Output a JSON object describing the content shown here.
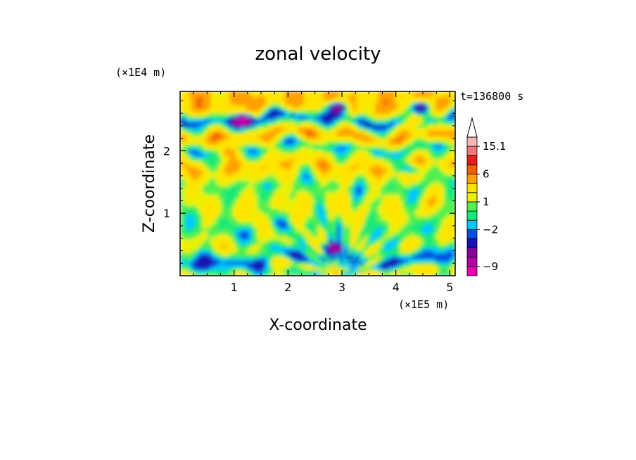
{
  "chart_data": {
    "type": "heatmap",
    "title": "zonal velocity",
    "xlabel": "X-coordinate",
    "ylabel": "Z-coordinate",
    "x_unit": "(×1E5 m)",
    "y_unit": "(×1E4 m)",
    "time_label": "t=136800 s",
    "xlim": [
      0,
      5.1
    ],
    "ylim": [
      0,
      2.95
    ],
    "x_ticks": [
      "1",
      "2",
      "3",
      "4",
      "5"
    ],
    "y_ticks": [
      "1",
      "2"
    ],
    "colorbar": {
      "labels": [
        "15.1",
        "6",
        "1",
        "−2",
        "−9"
      ],
      "label_values": [
        15.1,
        6,
        1,
        -2,
        -9
      ],
      "levels": [
        -12,
        -9,
        -7,
        -5,
        -3,
        -2,
        -1,
        0,
        1,
        2,
        4,
        6,
        9,
        12,
        15.1
      ],
      "colors": [
        "#e800b4",
        "#b800a8",
        "#8a009c",
        "#1414b4",
        "#0050e0",
        "#00c8ff",
        "#14e878",
        "#50f050",
        "#ecf000",
        "#ffe400",
        "#ffa000",
        "#f06000",
        "#e81c1c",
        "#f07878",
        "#f8b4b4"
      ],
      "extend_max": true
    },
    "series": [
      {
        "comment_free_field": true,
        "z_levels": [
          2.7,
          2.5,
          2.25,
          2.05,
          1.75,
          1.45,
          1.1,
          0.75,
          0.5,
          0.25,
          0.1
        ],
        "z_values": [
          4,
          -3,
          5,
          -1,
          4,
          0,
          2,
          0,
          1,
          -2,
          1
        ],
        "features": [
          {
            "x": 1.2,
            "z": 2.5,
            "value": -9
          },
          {
            "x": 2.95,
            "z": 2.7,
            "value": -9
          },
          {
            "x": 4.45,
            "z": 2.7,
            "value": -9
          },
          {
            "x": 4.4,
            "z": 2.5,
            "value": 8
          },
          {
            "x": 0.9,
            "z": 2.0,
            "value": 5
          },
          {
            "x": 4.3,
            "z": 1.7,
            "value": -7
          },
          {
            "x": 2.85,
            "z": 0.45,
            "value": -6
          }
        ]
      }
    ]
  }
}
